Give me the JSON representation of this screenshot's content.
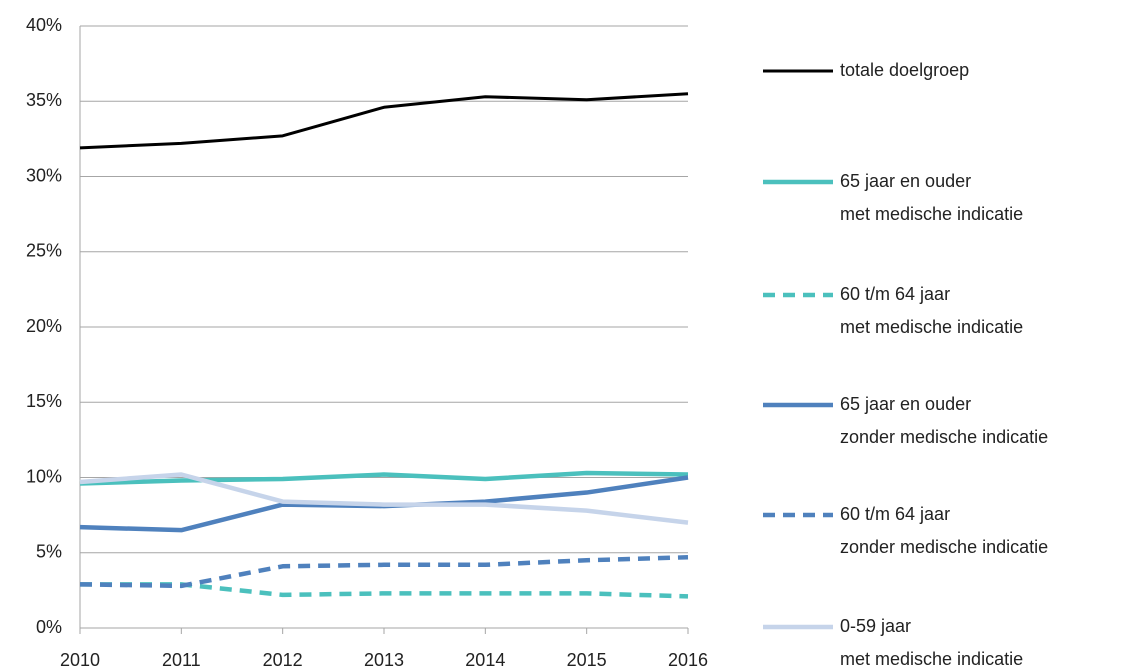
{
  "chart_data": {
    "type": "line",
    "x": [
      2010,
      2011,
      2012,
      2013,
      2014,
      2015,
      2016
    ],
    "xlim": [
      2010,
      2016
    ],
    "xticks": [
      2010,
      2011,
      2012,
      2013,
      2014,
      2015,
      2016
    ],
    "ylim": [
      0,
      40
    ],
    "yticks": [
      {
        "value": 0,
        "label": "0%"
      },
      {
        "value": 5,
        "label": "5%"
      },
      {
        "value": 10,
        "label": "10%"
      },
      {
        "value": 15,
        "label": "15%"
      },
      {
        "value": 20,
        "label": "20%"
      },
      {
        "value": 25,
        "label": "25%"
      },
      {
        "value": 30,
        "label": "30%"
      },
      {
        "value": 35,
        "label": "35%"
      },
      {
        "value": 40,
        "label": "40%"
      }
    ],
    "grid": true,
    "legend": "right",
    "series": [
      {
        "name": "totale doelgroep",
        "color": "#000000",
        "style": "solid",
        "values": [
          31.9,
          32.2,
          32.7,
          34.6,
          35.3,
          35.1,
          35.5
        ]
      },
      {
        "name": "65 jaar en ouder\nmet medische indicatie",
        "color": "#4bc0bd",
        "style": "solid",
        "values": [
          9.6,
          9.8,
          9.9,
          10.2,
          9.9,
          10.3,
          10.2
        ]
      },
      {
        "name": "60 t/m 64 jaar\nmet medische indicatie",
        "color": "#4bc0bd",
        "style": "dashed",
        "values": [
          2.9,
          2.9,
          2.2,
          2.3,
          2.3,
          2.3,
          2.1
        ]
      },
      {
        "name": "65 jaar en ouder\nzonder medische indicatie",
        "color": "#4f81bd",
        "style": "solid",
        "values": [
          6.7,
          6.5,
          8.2,
          8.1,
          8.4,
          9.0,
          10.0
        ]
      },
      {
        "name": "60 t/m 64 jaar\nzonder medische indicatie",
        "color": "#4f81bd",
        "style": "dashed",
        "values": [
          2.9,
          2.8,
          4.1,
          4.2,
          4.2,
          4.5,
          4.7
        ]
      },
      {
        "name": "0-59 jaar\nmet medische indicatie",
        "color": "#c6d4ea",
        "style": "solid",
        "values": [
          9.7,
          10.2,
          8.4,
          8.2,
          8.2,
          7.8,
          7.0
        ]
      }
    ]
  }
}
